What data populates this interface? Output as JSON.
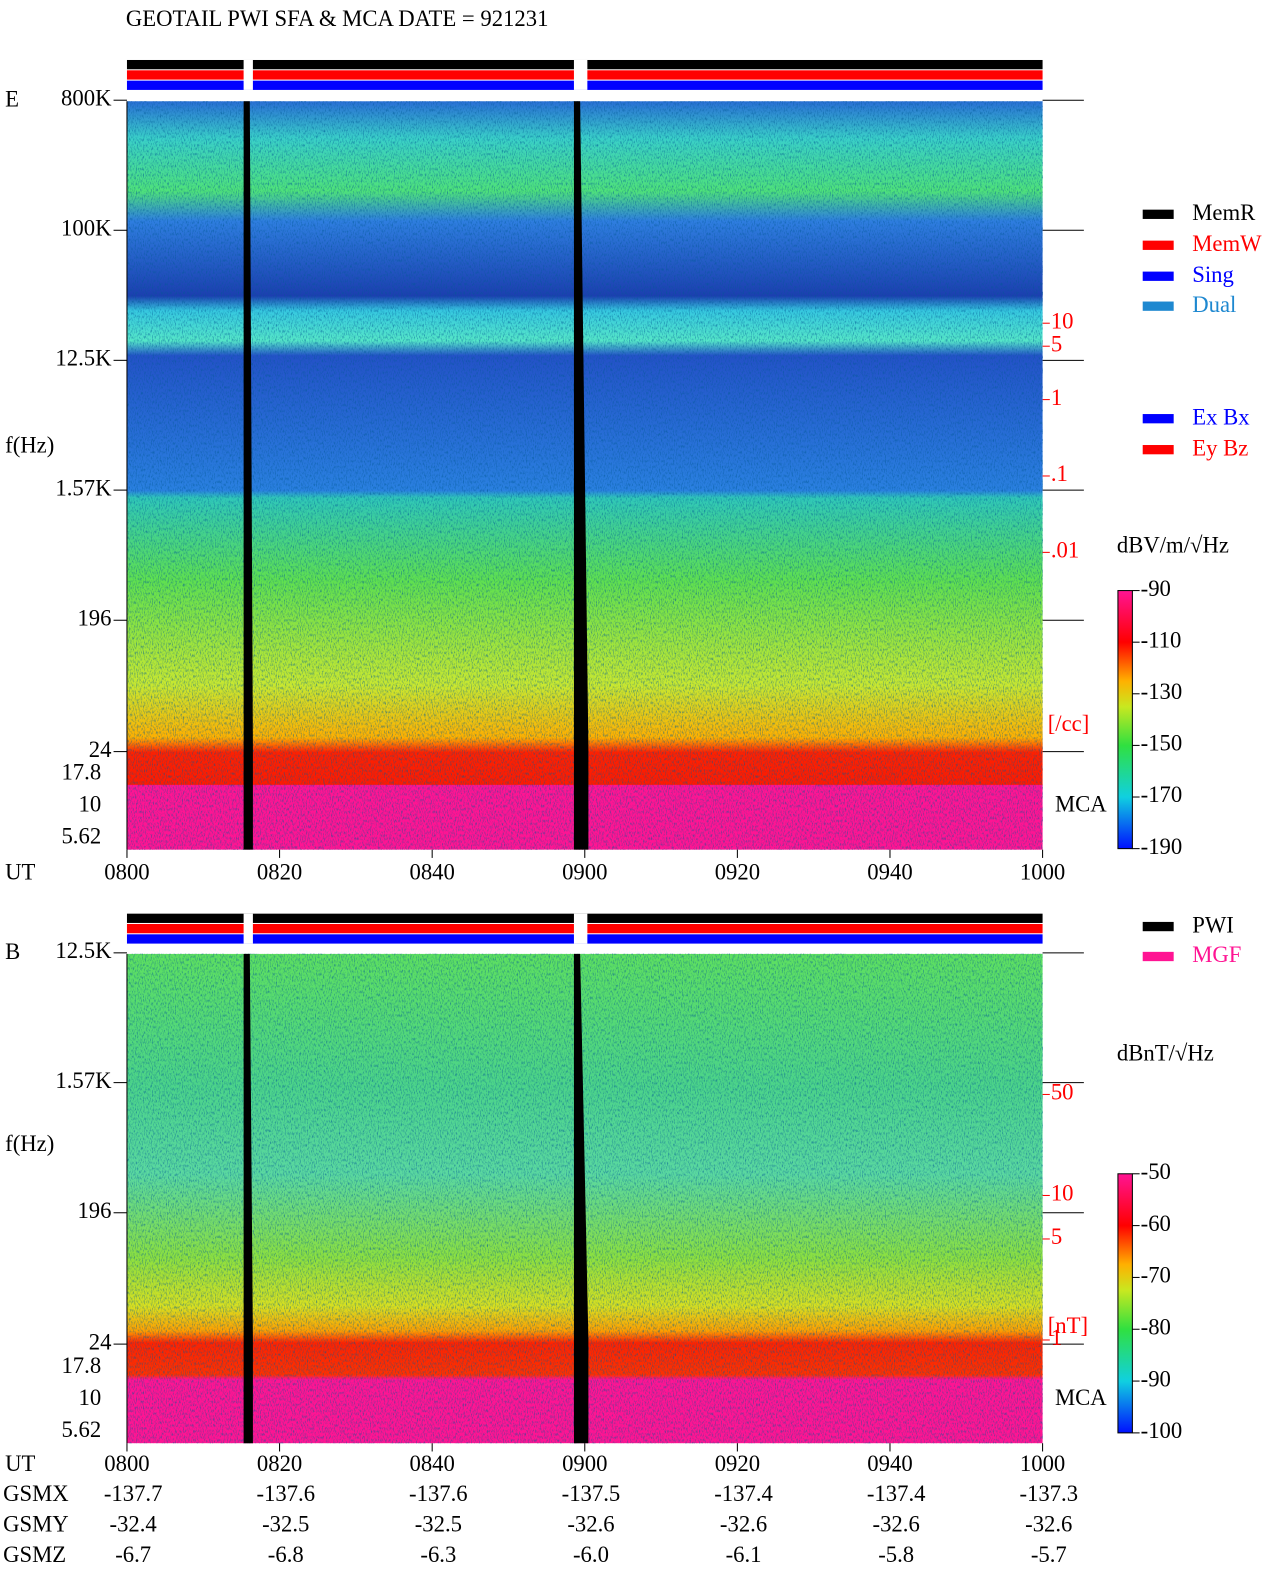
{
  "title": "GEOTAIL  PWI SFA & MCA   DATE = 921231",
  "chart_data": [
    {
      "type": "spectrogram",
      "panel_label": "E",
      "y_label": "f(Hz)",
      "x_label": "UT",
      "yticks": [
        {
          "value": 800000,
          "label": "800K"
        },
        {
          "value": 100000,
          "label": "100K"
        },
        {
          "value": 12500,
          "label": "12.5K"
        },
        {
          "value": 1570,
          "label": "1.57K"
        },
        196,
        24
      ],
      "mca_channels": [
        17.8,
        10,
        5.62
      ],
      "mca_label": "MCA",
      "density_ticks": [
        10,
        5,
        1,
        {
          "value": 0.1,
          "label": ".1"
        },
        {
          "value": 0.01,
          "label": ".01"
        }
      ],
      "density_unit": "[/cc]",
      "colorbar_label": "dBV/m/√Hz",
      "colorbar_lim": [
        -190,
        -90
      ],
      "colorbar_ticks": [
        -90,
        -110,
        -130,
        -150,
        -170,
        -190
      ],
      "xticks": [
        "0800",
        "0820",
        "0840",
        "0900",
        "0920",
        "0940",
        "1000"
      ],
      "legend": [
        {
          "name": "MemR",
          "color": "#000000"
        },
        {
          "name": "MemW",
          "color": "#ff0000"
        },
        {
          "name": "Sing",
          "color": "#0000ff"
        },
        {
          "name": "Dual",
          "color": "#1e88d0"
        }
      ],
      "legend2": [
        {
          "name": "Ex Bx",
          "color": "#0000ff"
        },
        {
          "name": "Ey Bz",
          "color": "#ff0000"
        }
      ]
    },
    {
      "type": "spectrogram",
      "panel_label": "B",
      "y_label": "f(Hz)",
      "x_label": "UT",
      "yticks": [
        {
          "value": 12500,
          "label": "12.5K"
        },
        {
          "value": 1570,
          "label": "1.57K"
        },
        196,
        24
      ],
      "mca_channels": [
        17.8,
        10,
        5.62
      ],
      "mca_label": "MCA",
      "density_ticks": [
        50,
        10,
        5,
        1
      ],
      "density_unit": "[nT]",
      "colorbar_label": "dBnT/√Hz",
      "colorbar_lim": [
        -100,
        -50
      ],
      "colorbar_ticks": [
        -50,
        -60,
        -70,
        -80,
        -90,
        -100
      ],
      "xticks": [
        "0800",
        "0820",
        "0840",
        "0900",
        "0920",
        "0940",
        "1000"
      ],
      "legend": [
        {
          "name": "PWI",
          "color": "#000000"
        },
        {
          "name": "MGF",
          "color": "#ff1493"
        }
      ]
    }
  ],
  "orbit": {
    "rows": [
      {
        "name": "GSMX",
        "values": [
          "-137.7",
          "-137.6",
          "-137.6",
          "-137.5",
          "-137.4",
          "-137.4",
          "-137.3"
        ]
      },
      {
        "name": "GSMY",
        "values": [
          "-32.4",
          "-32.5",
          "-32.5",
          "-32.6",
          "-32.6",
          "-32.6",
          "-32.6"
        ]
      },
      {
        "name": "GSMZ",
        "values": [
          "-6.7",
          "-6.8",
          "-6.3",
          "-6.0",
          "-6.1",
          "-5.8",
          "-5.7"
        ]
      }
    ]
  }
}
